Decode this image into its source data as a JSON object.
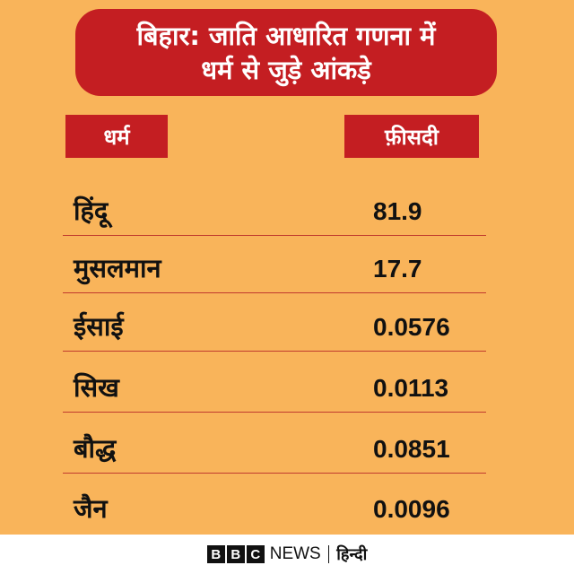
{
  "title": {
    "line1": "बिहार: जाति आधारित गणना में",
    "line2": "धर्म से जुड़े आंकड़े"
  },
  "table": {
    "headers": {
      "religion": "धर्म",
      "percent": "फ़ीसदी"
    },
    "rows": [
      {
        "name": "हिंदू",
        "value": "81.9"
      },
      {
        "name": "मुसलमान",
        "value": "17.7"
      },
      {
        "name": "ईसाई",
        "value": "0.0576"
      },
      {
        "name": "सिख",
        "value": "0.0113"
      },
      {
        "name": "बौद्ध",
        "value": "0.0851"
      },
      {
        "name": "जैन",
        "value": "0.0096"
      }
    ]
  },
  "footer": {
    "logo_letters": [
      "B",
      "B",
      "C"
    ],
    "news": "NEWS",
    "language": "हिन्दी"
  },
  "colors": {
    "background": "#F9B45A",
    "accent": "#C41E22",
    "divider": "#C13B2E"
  }
}
